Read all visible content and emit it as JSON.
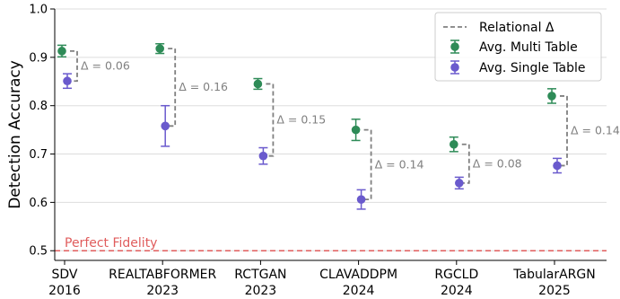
{
  "chart_data": {
    "type": "scatter",
    "ylabel": "Detection Accuracy",
    "ylim": [
      0.48,
      1.0
    ],
    "yticks": [
      "0.5",
      "0.6",
      "0.7",
      "0.8",
      "0.9",
      "1.0"
    ],
    "ytick_values": [
      0.5,
      0.6,
      0.7,
      0.8,
      0.9,
      1.0
    ],
    "grid": "horizontal",
    "legend_position": "top-right",
    "categories": [
      {
        "name": "SDV",
        "year": "2016"
      },
      {
        "name": "REALTABFORMER",
        "year": "2023"
      },
      {
        "name": "RCTGAN",
        "year": "2023"
      },
      {
        "name": "CLAVADDPM",
        "year": "2024"
      },
      {
        "name": "RGCLD",
        "year": "2024"
      },
      {
        "name": "TabularARGN",
        "year": "2025"
      }
    ],
    "series": [
      {
        "name": "Avg. Multi Table",
        "color": "#2e8b57",
        "values": [
          0.913,
          0.918,
          0.845,
          0.75,
          0.72,
          0.82
        ],
        "errors": [
          0.012,
          0.01,
          0.011,
          0.022,
          0.015,
          0.015
        ]
      },
      {
        "name": "Avg. Single Table",
        "color": "#6a5acd",
        "values": [
          0.851,
          0.758,
          0.696,
          0.606,
          0.64,
          0.676
        ],
        "errors": [
          0.015,
          0.042,
          0.017,
          0.02,
          0.012,
          0.015
        ]
      }
    ],
    "delta_series_name": "Relational Δ",
    "delta_color": "#808080",
    "deltas": [
      "Δ = 0.06",
      "Δ = 0.16",
      "Δ = 0.15",
      "Δ = 0.14",
      "Δ = 0.08",
      "Δ = 0.14"
    ],
    "reference_line": {
      "value": 0.5,
      "label": "Perfect Fidelity",
      "color": "#e05c5c"
    }
  }
}
